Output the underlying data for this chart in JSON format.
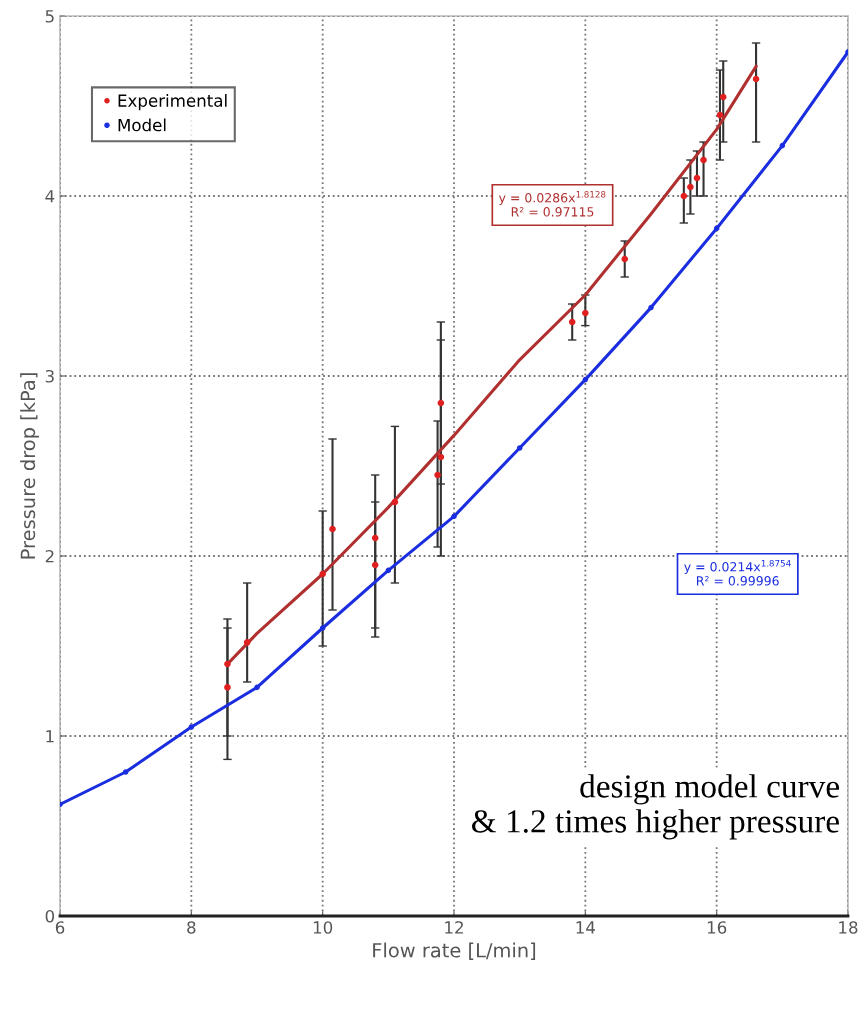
{
  "chart_data": {
    "type": "scatter",
    "xlabel": "Flow rate [L/min]",
    "ylabel": "Pressure drop [kPa]",
    "xlim": [
      6,
      18
    ],
    "ylim": [
      0,
      5
    ],
    "xticks": [
      6,
      8,
      10,
      12,
      14,
      16,
      18
    ],
    "yticks": [
      0,
      1,
      2,
      3,
      4,
      5
    ],
    "grid": true,
    "legend": "top left",
    "series": [
      {
        "name": "Experimental",
        "color": "#e02020",
        "marker": "circle",
        "x": [
          8.55,
          8.55,
          8.85,
          10.0,
          10.15,
          10.8,
          10.8,
          11.1,
          11.8,
          11.8,
          11.75,
          13.8,
          14.0,
          14.6,
          15.5,
          15.6,
          15.7,
          15.8,
          16.05,
          16.1,
          16.6
        ],
        "values": [
          1.27,
          1.4,
          1.52,
          1.9,
          2.15,
          2.1,
          1.95,
          2.3,
          2.85,
          2.55,
          2.45,
          3.3,
          3.35,
          3.65,
          4.0,
          4.05,
          4.1,
          4.2,
          4.45,
          4.55,
          4.65
        ],
        "errors": [
          [
            0.87,
            1.6
          ],
          [
            1.0,
            1.65
          ],
          [
            1.3,
            1.85
          ],
          [
            1.5,
            2.25
          ],
          [
            1.7,
            2.65
          ],
          [
            1.6,
            2.45
          ],
          [
            1.55,
            2.3
          ],
          [
            1.85,
            2.72
          ],
          [
            2.4,
            3.3
          ],
          [
            2.0,
            3.2
          ],
          [
            2.05,
            2.75
          ],
          [
            3.2,
            3.4
          ],
          [
            3.28,
            3.45
          ],
          [
            3.55,
            3.75
          ],
          [
            3.85,
            4.1
          ],
          [
            3.9,
            4.2
          ],
          [
            4.0,
            4.25
          ],
          [
            4.0,
            4.3
          ],
          [
            4.2,
            4.7
          ],
          [
            4.3,
            4.75
          ],
          [
            4.3,
            4.85
          ]
        ]
      },
      {
        "type": "line",
        "color": "#b03030",
        "marker": "none",
        "x": [
          8.55,
          9,
          10,
          11,
          12,
          13,
          14,
          15,
          16,
          16.6
        ],
        "values": [
          1.4,
          1.57,
          1.9,
          2.27,
          2.67,
          3.09,
          3.45,
          3.9,
          4.37,
          4.72
        ]
      },
      {
        "name": "Model",
        "type": "line",
        "color": "#1a2ee0",
        "marker": "circle",
        "x": [
          6,
          7,
          8,
          9,
          10,
          11,
          12,
          13,
          14,
          15,
          16,
          17,
          18
        ],
        "values": [
          0.62,
          0.8,
          1.05,
          1.27,
          1.6,
          1.92,
          2.22,
          2.6,
          2.98,
          3.38,
          3.82,
          4.28,
          4.8
        ]
      }
    ],
    "annotations": [
      "y = 0.0286x$^{1.8128}$\nR² = 0.97115",
      "y = 0.0214x$^{1.8754}$\nR² = 0.99996",
      "design model curve\n& 1.2 times higher pressure"
    ]
  }
}
